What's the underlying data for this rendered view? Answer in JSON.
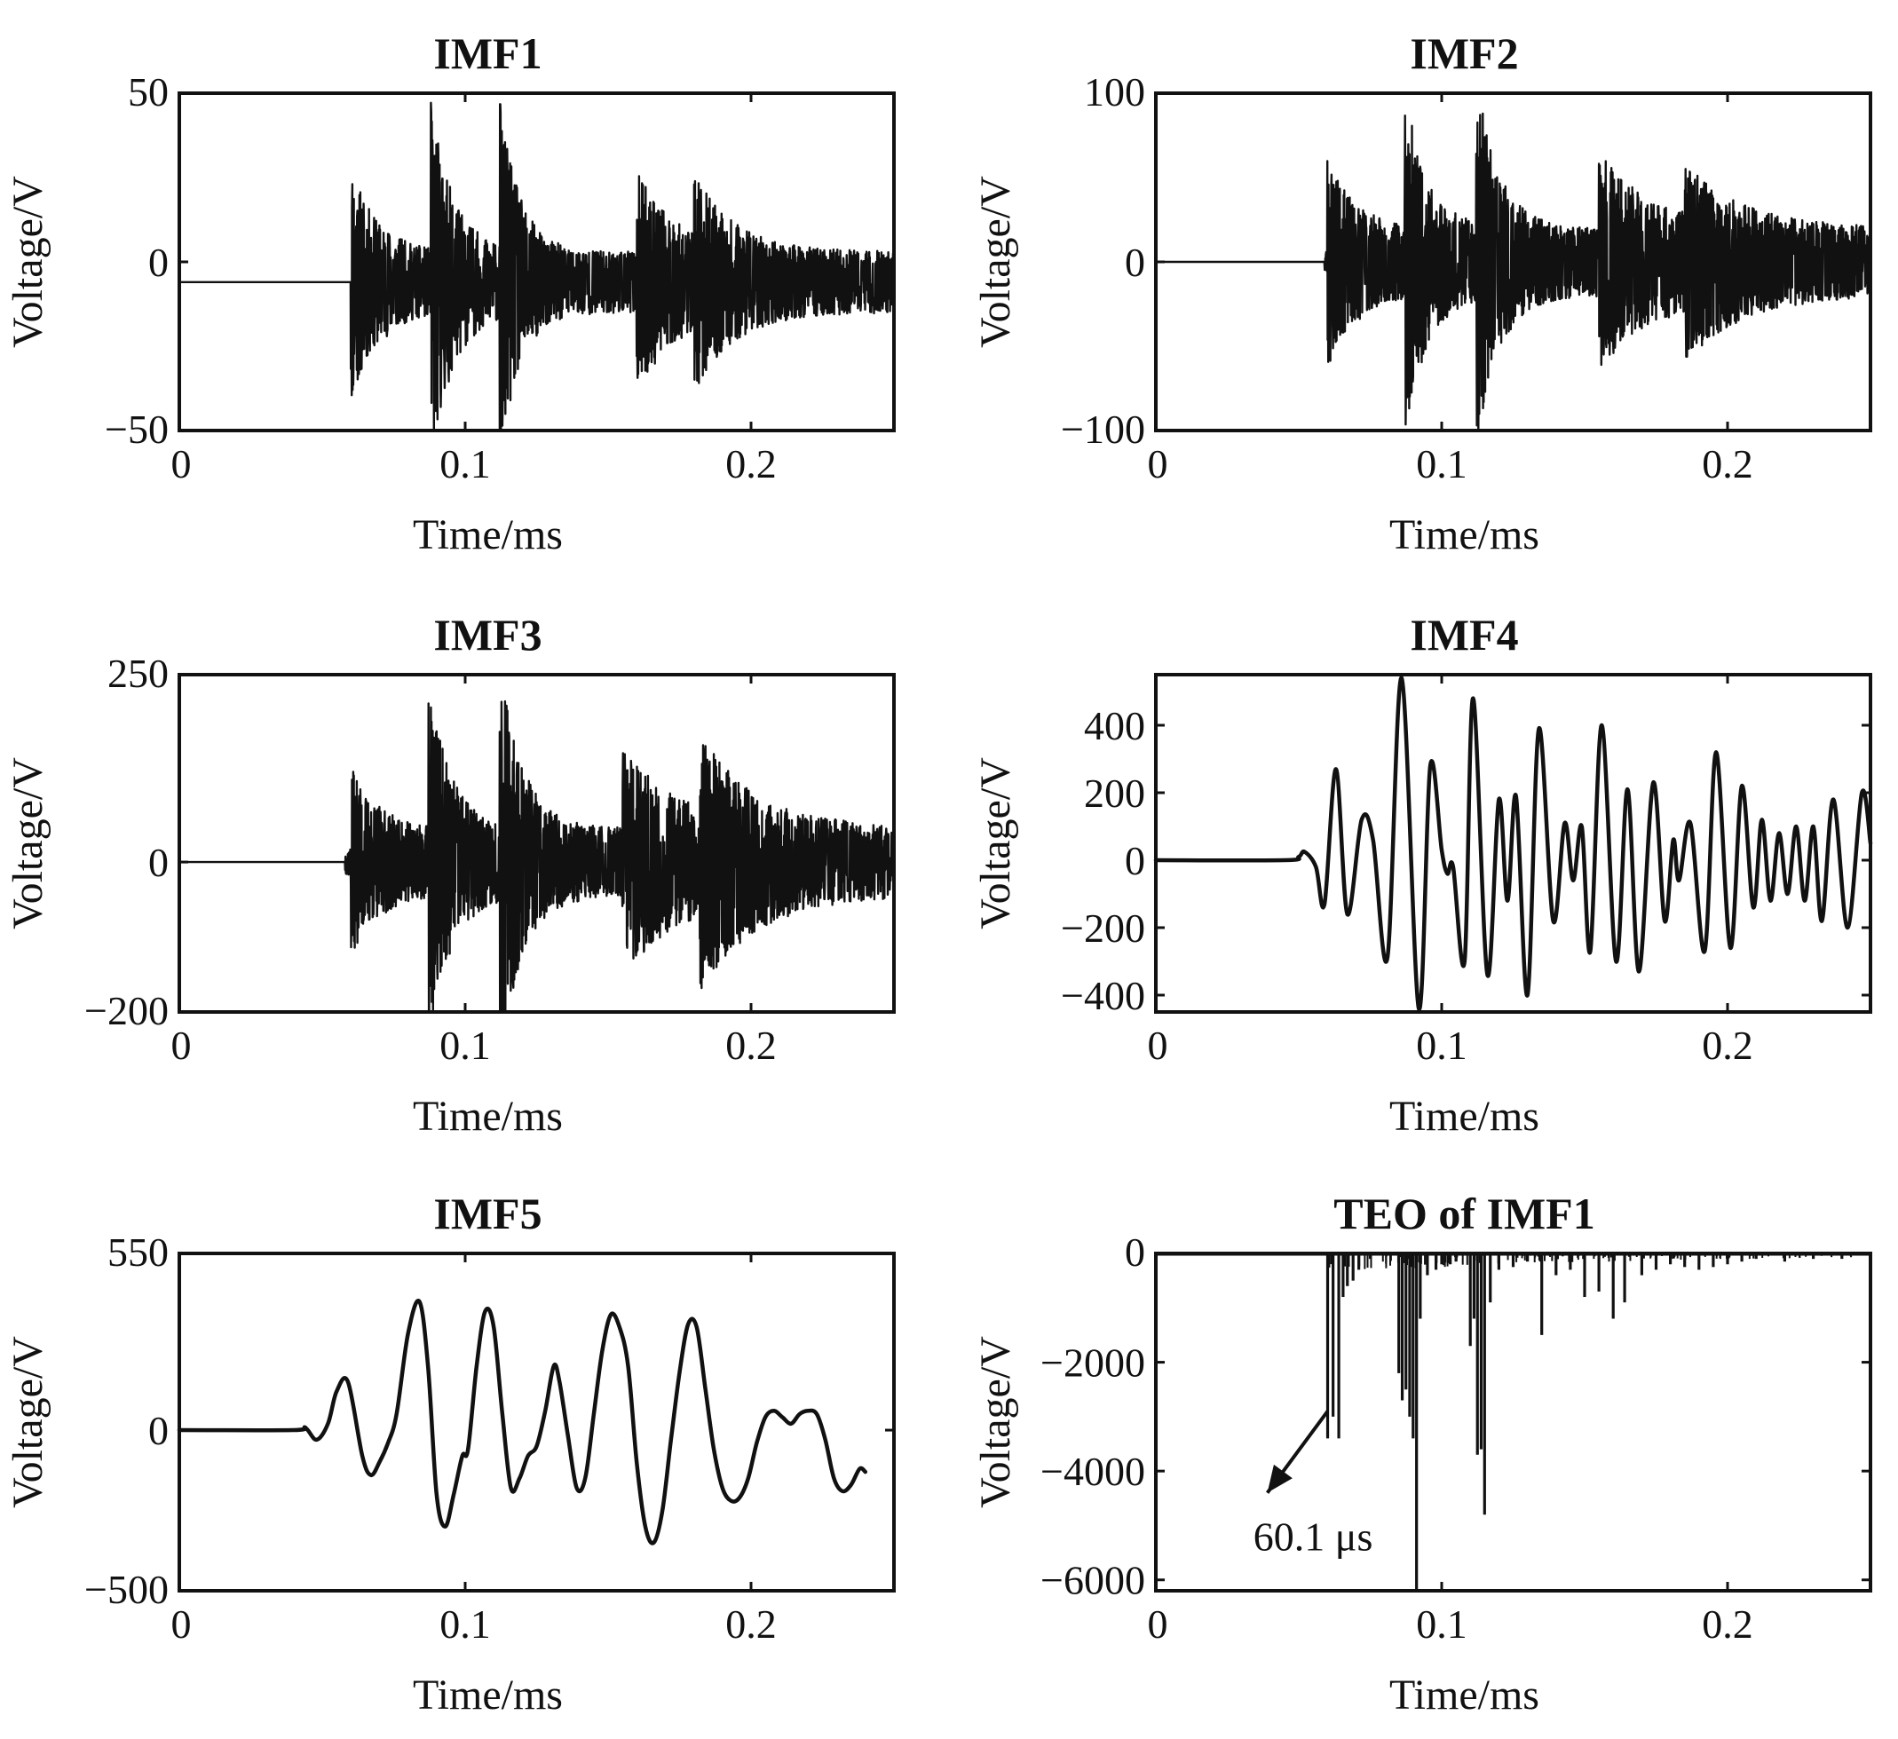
{
  "figure": {
    "subplots": 6,
    "color": "#111111"
  },
  "chart_data": [
    {
      "type": "line",
      "title": "IMF1",
      "xlabel": "Time/ms",
      "ylabel": "Voltage/V",
      "xlim": [
        0,
        0.25
      ],
      "ylim": [
        -50,
        50
      ],
      "xticks": [
        0,
        0.1,
        0.2
      ],
      "xtick_labels": [
        "0",
        "0.1",
        "0.2"
      ],
      "yticks": [
        -50,
        0,
        50
      ],
      "ytick_labels": [
        "−50",
        "0",
        "50"
      ],
      "signal": {
        "kind": "noise",
        "baseline": -6,
        "onset": 0.06,
        "bursts": [
          {
            "t": 0.06,
            "amp": 35,
            "width": 0.008
          },
          {
            "t": 0.088,
            "amp": 44,
            "width": 0.008
          },
          {
            "t": 0.112,
            "amp": 44,
            "width": 0.007
          },
          {
            "t": 0.16,
            "amp": 24,
            "width": 0.014
          },
          {
            "t": 0.18,
            "amp": 18,
            "width": 0.014
          }
        ],
        "floor": 9,
        "seed": 11
      }
    },
    {
      "type": "line",
      "title": "IMF2",
      "xlabel": "Time/ms",
      "ylabel": "Voltage/V",
      "xlim": [
        0,
        0.25
      ],
      "ylim": [
        -100,
        100
      ],
      "xticks": [
        0,
        0.1,
        0.2
      ],
      "xtick_labels": [
        "0",
        "0.1",
        "0.2"
      ],
      "yticks": [
        -100,
        0,
        100
      ],
      "ytick_labels": [
        "−100",
        "0",
        "100"
      ],
      "signal": {
        "kind": "noise",
        "baseline": 0,
        "onset": 0.059,
        "bursts": [
          {
            "t": 0.06,
            "amp": 60,
            "width": 0.008
          },
          {
            "t": 0.087,
            "amp": 82,
            "width": 0.008
          },
          {
            "t": 0.112,
            "amp": 88,
            "width": 0.008
          },
          {
            "t": 0.155,
            "amp": 45,
            "width": 0.02
          },
          {
            "t": 0.185,
            "amp": 30,
            "width": 0.02
          }
        ],
        "floor": 20,
        "seed": 23
      }
    },
    {
      "type": "line",
      "title": "IMF3",
      "xlabel": "Time/ms",
      "ylabel": "Voltage/V",
      "xlim": [
        0,
        0.25
      ],
      "ylim": [
        -200,
        250
      ],
      "xticks": [
        0,
        0.1,
        0.2
      ],
      "xtick_labels": [
        "0",
        "0.1",
        "0.2"
      ],
      "yticks": [
        -200,
        0,
        250
      ],
      "ytick_labels": [
        "−200",
        "0",
        "250"
      ],
      "signal": {
        "kind": "noise",
        "baseline": 0,
        "onset": 0.058,
        "bursts": [
          {
            "t": 0.06,
            "amp": 110,
            "width": 0.008
          },
          {
            "t": 0.087,
            "amp": 200,
            "width": 0.008
          },
          {
            "t": 0.112,
            "amp": 220,
            "width": 0.008
          },
          {
            "t": 0.155,
            "amp": 110,
            "width": 0.02
          },
          {
            "t": 0.182,
            "amp": 100,
            "width": 0.02
          }
        ],
        "floor": 45,
        "seed": 37
      }
    },
    {
      "type": "line",
      "title": "IMF4",
      "xlabel": "Time/ms",
      "ylabel": "Voltage/V",
      "xlim": [
        0,
        0.25
      ],
      "ylim": [
        -450,
        550
      ],
      "xticks": [
        0,
        0.1,
        0.2
      ],
      "xtick_labels": [
        "0",
        "0.1",
        "0.2"
      ],
      "yticks": [
        -400,
        -200,
        0,
        200,
        400
      ],
      "ytick_labels": [
        "−400",
        "−200",
        "0",
        "200",
        "400"
      ],
      "signal": {
        "kind": "knots",
        "points": [
          [
            0,
            0
          ],
          [
            0.045,
            0
          ],
          [
            0.05,
            10
          ],
          [
            0.052,
            25
          ],
          [
            0.056,
            -20
          ],
          [
            0.059,
            -130
          ],
          [
            0.063,
            270
          ],
          [
            0.067,
            -160
          ],
          [
            0.072,
            120
          ],
          [
            0.076,
            60
          ],
          [
            0.081,
            -290
          ],
          [
            0.086,
            540
          ],
          [
            0.092,
            -440
          ],
          [
            0.096,
            280
          ],
          [
            0.1,
            30
          ],
          [
            0.102,
            -40
          ],
          [
            0.104,
            -20
          ],
          [
            0.108,
            -300
          ],
          [
            0.111,
            480
          ],
          [
            0.116,
            -340
          ],
          [
            0.12,
            180
          ],
          [
            0.123,
            -120
          ],
          [
            0.126,
            190
          ],
          [
            0.13,
            -400
          ],
          [
            0.134,
            390
          ],
          [
            0.139,
            -180
          ],
          [
            0.143,
            110
          ],
          [
            0.146,
            -60
          ],
          [
            0.149,
            100
          ],
          [
            0.152,
            -270
          ],
          [
            0.156,
            400
          ],
          [
            0.161,
            -300
          ],
          [
            0.165,
            210
          ],
          [
            0.169,
            -330
          ],
          [
            0.174,
            230
          ],
          [
            0.178,
            -180
          ],
          [
            0.181,
            60
          ],
          [
            0.183,
            -60
          ],
          [
            0.187,
            110
          ],
          [
            0.192,
            -270
          ],
          [
            0.196,
            320
          ],
          [
            0.201,
            -260
          ],
          [
            0.205,
            220
          ],
          [
            0.209,
            -140
          ],
          [
            0.212,
            120
          ],
          [
            0.215,
            -120
          ],
          [
            0.218,
            80
          ],
          [
            0.221,
            -100
          ],
          [
            0.224,
            100
          ],
          [
            0.227,
            -120
          ],
          [
            0.23,
            100
          ],
          [
            0.233,
            -180
          ],
          [
            0.237,
            180
          ],
          [
            0.242,
            -200
          ],
          [
            0.247,
            200
          ],
          [
            0.25,
            50
          ]
        ]
      }
    },
    {
      "type": "line",
      "title": "IMF5",
      "xlabel": "Time/ms",
      "ylabel": "Voltage/V",
      "xlim": [
        0,
        0.25
      ],
      "ylim": [
        -500,
        550
      ],
      "xticks": [
        0,
        0.1,
        0.2
      ],
      "xtick_labels": [
        "0",
        "0.1",
        "0.2"
      ],
      "yticks": [
        -500,
        0,
        550
      ],
      "ytick_labels": [
        "−500",
        "0",
        "550"
      ],
      "signal": {
        "kind": "knots",
        "points": [
          [
            0,
            0
          ],
          [
            0.04,
            0
          ],
          [
            0.044,
            8
          ],
          [
            0.048,
            -30
          ],
          [
            0.052,
            20
          ],
          [
            0.055,
            120
          ],
          [
            0.059,
            150
          ],
          [
            0.064,
            -80
          ],
          [
            0.067,
            -140
          ],
          [
            0.07,
            -100
          ],
          [
            0.073,
            -40
          ],
          [
            0.076,
            50
          ],
          [
            0.08,
            300
          ],
          [
            0.084,
            400
          ],
          [
            0.087,
            200
          ],
          [
            0.09,
            -200
          ],
          [
            0.093,
            -300
          ],
          [
            0.096,
            -200
          ],
          [
            0.099,
            -80
          ],
          [
            0.101,
            -60
          ],
          [
            0.104,
            200
          ],
          [
            0.107,
            370
          ],
          [
            0.11,
            320
          ],
          [
            0.113,
            50
          ],
          [
            0.116,
            -180
          ],
          [
            0.119,
            -150
          ],
          [
            0.122,
            -80
          ],
          [
            0.125,
            -50
          ],
          [
            0.128,
            60
          ],
          [
            0.131,
            200
          ],
          [
            0.133,
            150
          ],
          [
            0.136,
            -20
          ],
          [
            0.139,
            -180
          ],
          [
            0.142,
            -150
          ],
          [
            0.145,
            50
          ],
          [
            0.148,
            250
          ],
          [
            0.151,
            360
          ],
          [
            0.154,
            320
          ],
          [
            0.157,
            200
          ],
          [
            0.16,
            -100
          ],
          [
            0.163,
            -300
          ],
          [
            0.166,
            -350
          ],
          [
            0.169,
            -250
          ],
          [
            0.172,
            -30
          ],
          [
            0.175,
            180
          ],
          [
            0.178,
            330
          ],
          [
            0.181,
            320
          ],
          [
            0.184,
            130
          ],
          [
            0.187,
            -60
          ],
          [
            0.19,
            -180
          ],
          [
            0.193,
            -220
          ],
          [
            0.196,
            -210
          ],
          [
            0.199,
            -150
          ],
          [
            0.202,
            -40
          ],
          [
            0.205,
            40
          ],
          [
            0.208,
            60
          ],
          [
            0.211,
            40
          ],
          [
            0.214,
            20
          ],
          [
            0.217,
            50
          ],
          [
            0.22,
            60
          ],
          [
            0.223,
            50
          ],
          [
            0.226,
            -30
          ],
          [
            0.229,
            -150
          ],
          [
            0.232,
            -190
          ],
          [
            0.235,
            -170
          ],
          [
            0.238,
            -120
          ],
          [
            0.24,
            -130
          ]
        ]
      }
    },
    {
      "type": "bar",
      "title": "TEO of IMF1",
      "xlabel": "Time/ms",
      "ylabel": "Voltage/V",
      "xlim": [
        0,
        0.25
      ],
      "ylim": [
        -6200,
        0
      ],
      "xticks": [
        0,
        0.1,
        0.2
      ],
      "xtick_labels": [
        "0",
        "0.1",
        "0.2"
      ],
      "yticks": [
        -6000,
        -4000,
        -2000,
        0
      ],
      "ytick_labels": [
        "−6000",
        "−4000",
        "−2000",
        "0"
      ],
      "signal": {
        "kind": "spikes",
        "spikes": [
          [
            0.0601,
            -3400
          ],
          [
            0.062,
            -3000
          ],
          [
            0.064,
            -3400
          ],
          [
            0.0655,
            -800
          ],
          [
            0.067,
            -600
          ],
          [
            0.069,
            -500
          ],
          [
            0.071,
            -300
          ],
          [
            0.075,
            -100
          ],
          [
            0.085,
            -2200
          ],
          [
            0.0862,
            -2700
          ],
          [
            0.0875,
            -2500
          ],
          [
            0.0888,
            -3000
          ],
          [
            0.09,
            -3400
          ],
          [
            0.0912,
            -6200
          ],
          [
            0.0925,
            -1200
          ],
          [
            0.095,
            -400
          ],
          [
            0.098,
            -300
          ],
          [
            0.1,
            -200
          ],
          [
            0.103,
            -200
          ],
          [
            0.105,
            -150
          ],
          [
            0.11,
            -1700
          ],
          [
            0.1113,
            -1200
          ],
          [
            0.1125,
            -3700
          ],
          [
            0.1138,
            -3600
          ],
          [
            0.115,
            -4800
          ],
          [
            0.117,
            -900
          ],
          [
            0.12,
            -300
          ],
          [
            0.125,
            -250
          ],
          [
            0.13,
            -150
          ],
          [
            0.135,
            -1500
          ],
          [
            0.14,
            -400
          ],
          [
            0.145,
            -300
          ],
          [
            0.15,
            -800
          ],
          [
            0.155,
            -700
          ],
          [
            0.16,
            -1200
          ],
          [
            0.164,
            -900
          ],
          [
            0.17,
            -400
          ],
          [
            0.175,
            -300
          ],
          [
            0.18,
            -200
          ],
          [
            0.185,
            -250
          ],
          [
            0.19,
            -300
          ],
          [
            0.195,
            -250
          ],
          [
            0.2,
            -200
          ],
          [
            0.205,
            -150
          ],
          [
            0.21,
            -100
          ],
          [
            0.22,
            -150
          ],
          [
            0.23,
            -100
          ],
          [
            0.24,
            -100
          ]
        ]
      },
      "annotation": {
        "text": "60.1 μs",
        "point": [
          0.0601,
          -2900
        ],
        "arrow_head": [
          0.039,
          -4400
        ],
        "text_at": [
          0.055,
          -5200
        ]
      }
    }
  ]
}
